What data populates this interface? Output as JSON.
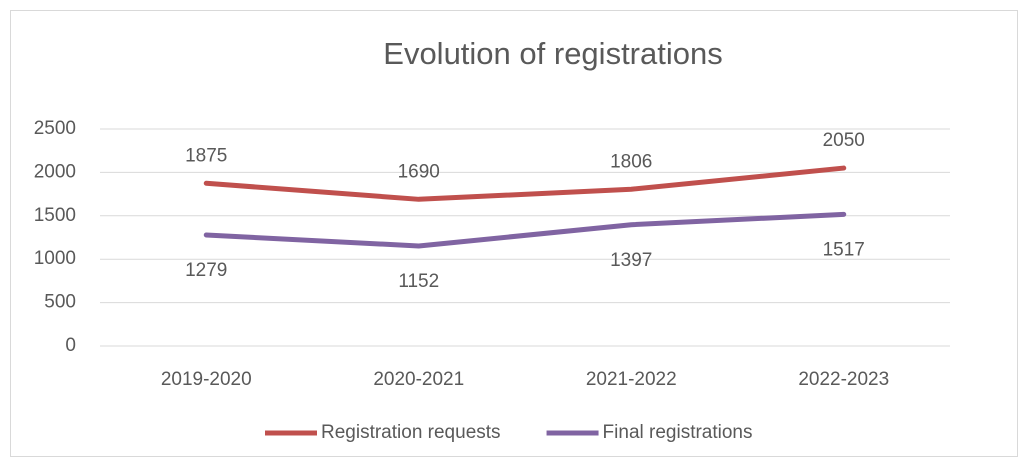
{
  "chart_data": {
    "type": "line",
    "title": "Evolution of registrations",
    "categories": [
      "2019-2020",
      "2020-2021",
      "2021-2022",
      "2022-2023"
    ],
    "series": [
      {
        "name": "Registration requests",
        "color": "#c0504d",
        "values": [
          1875,
          1690,
          1806,
          2050
        ]
      },
      {
        "name": "Final registrations",
        "color": "#8064a2",
        "values": [
          1279,
          1152,
          1397,
          1517
        ]
      }
    ],
    "ylim": [
      0,
      2500
    ],
    "yticks": [
      0,
      500,
      1000,
      1500,
      2000,
      2500
    ],
    "grid": true,
    "legend": "bottom"
  }
}
